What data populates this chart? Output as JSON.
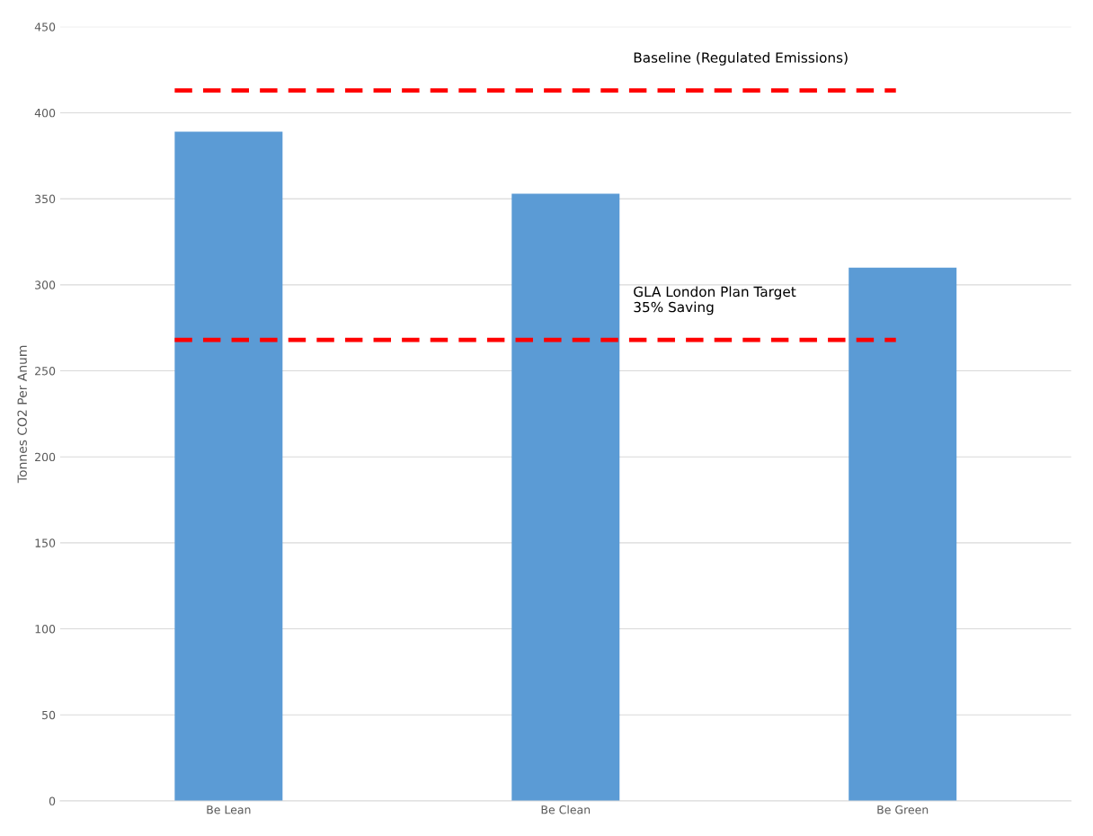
{
  "chart_data": {
    "type": "bar",
    "ylabel": "Tonnes CO2 Per Anum",
    "categories": [
      "Be Lean",
      "Be Clean",
      "Be Green"
    ],
    "values": [
      389,
      353,
      310
    ],
    "color": "#5b9bd5",
    "ylim": [
      0,
      450
    ],
    "yticks": [
      0,
      50,
      100,
      150,
      200,
      250,
      300,
      350,
      400,
      450
    ],
    "grid": "y",
    "ref_lines": [
      {
        "axis": "y",
        "value": 413,
        "label": "Baseline (Regulated Emissions)",
        "color": "#ff0000",
        "line_style": "dashed"
      },
      {
        "axis": "y",
        "value": 268,
        "label": "GLA London Plan Target\n35% Saving",
        "color": "#ff0000",
        "line_style": "dashed"
      }
    ]
  }
}
